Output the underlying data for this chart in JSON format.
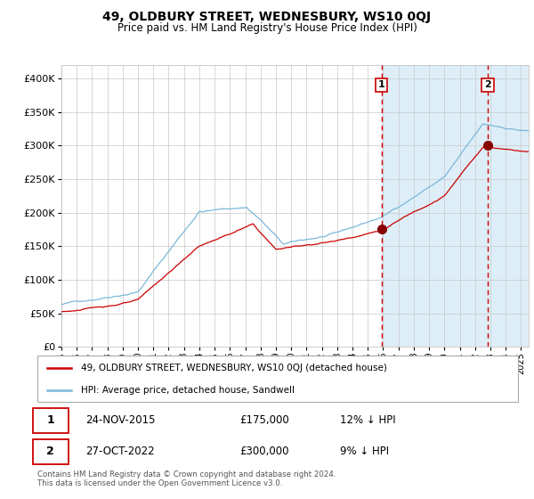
{
  "title": "49, OLDBURY STREET, WEDNESBURY, WS10 0QJ",
  "subtitle": "Price paid vs. HM Land Registry's House Price Index (HPI)",
  "legend_line1": "49, OLDBURY STREET, WEDNESBURY, WS10 0QJ (detached house)",
  "legend_line2": "HPI: Average price, detached house, Sandwell",
  "annotation1_date": "24-NOV-2015",
  "annotation1_price": "£175,000",
  "annotation1_hpi": "12% ↓ HPI",
  "annotation1_year": 2015.9,
  "annotation1_value": 175000,
  "annotation2_date": "27-OCT-2022",
  "annotation2_price": "£300,000",
  "annotation2_hpi": "9% ↓ HPI",
  "annotation2_year": 2022.82,
  "annotation2_value": 300000,
  "hpi_color": "#7ab8d9",
  "price_color": "#cc0000",
  "dot_color": "#880000",
  "dashed_color": "#cc0000",
  "plot_bg": "#ffffff",
  "shade_color": "#deeef8",
  "ylim": [
    0,
    420000
  ],
  "xlim_start": 1995.0,
  "xlim_end": 2025.5,
  "shade_start": 2015.9,
  "footnote": "Contains HM Land Registry data © Crown copyright and database right 2024.\nThis data is licensed under the Open Government Licence v3.0."
}
